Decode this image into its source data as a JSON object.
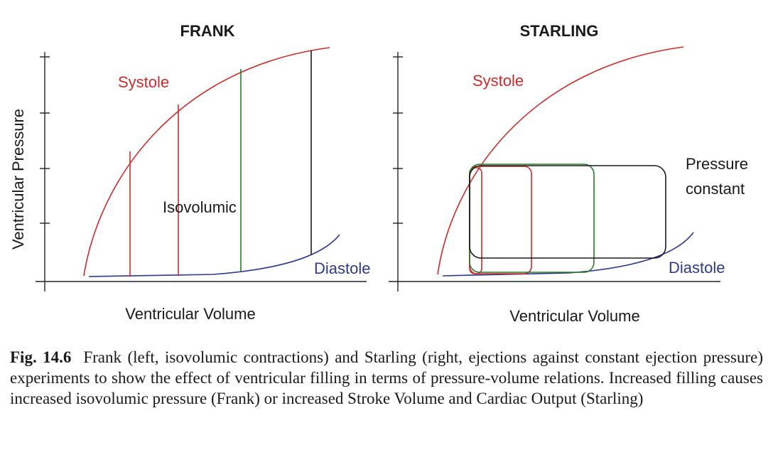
{
  "frank": {
    "title": "FRANK",
    "systole_label": "Systole",
    "isovolumic_label": "Isovolumic",
    "diastole_label": "Diastole",
    "xlabel": "Ventricular Volume",
    "ylabel": "Ventricular Pressure"
  },
  "starling": {
    "title": "STARLING",
    "systole_label": "Systole",
    "pressure_label_line1": "Pressure",
    "pressure_label_line2": "constant",
    "diastole_label": "Diastole",
    "xlabel": "Ventricular Volume"
  },
  "colors": {
    "systole": "#cc2b2b",
    "diastole": "#2e3a8c",
    "green": "#2a7a2a",
    "black": "#1a1a1a",
    "axis": "#222222"
  },
  "caption": {
    "label": "Fig. 14.6",
    "text": "Frank (left, isovolumic contractions) and Starling (right, ejections against constant ejection pressure) experiments to show the effect of ventricular filling in terms of pressure-volume relations. Increased filling causes increased isovolumic pressure (Frank) or increased Stroke Volume and Cardiac Output (Starling)"
  }
}
